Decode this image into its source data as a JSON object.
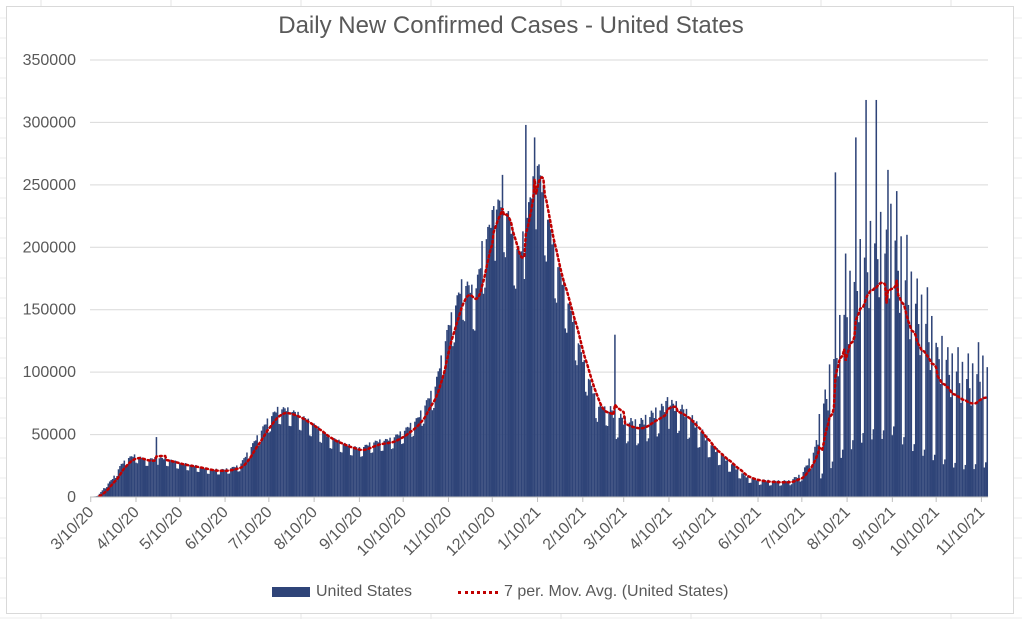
{
  "chart_data": {
    "type": "bar",
    "title": "Daily New Confirmed Cases - United States",
    "xlabel": "",
    "ylabel": "",
    "ylim": [
      0,
      350000
    ],
    "y_ticks": [
      "0",
      "50000",
      "100000",
      "150000",
      "200000",
      "250000",
      "300000",
      "350000"
    ],
    "x_start": "3/10/20",
    "x_end": "11/14/21",
    "x_ticks": [
      "3/10/20",
      "4/10/20",
      "5/10/20",
      "6/10/20",
      "7/10/20",
      "8/10/20",
      "9/10/20",
      "10/10/20",
      "11/10/20",
      "12/10/20",
      "1/10/21",
      "2/10/21",
      "3/10/21",
      "4/10/21",
      "5/10/21",
      "6/10/21",
      "7/10/21",
      "8/10/21",
      "9/10/21",
      "10/10/21",
      "11/10/21"
    ],
    "grid": true,
    "legend_position": "bottom",
    "colors": {
      "bars": "#2f4478",
      "moving_average": "#c00000",
      "grid": "#d9d9d9",
      "text": "#595959"
    },
    "series": [
      {
        "name": "United States",
        "type": "bar",
        "resolution": "daily",
        "anchor_points": [
          [
            "3/10/20",
            0
          ],
          [
            "3/15/20",
            1000
          ],
          [
            "3/20/20",
            8000
          ],
          [
            "3/25/20",
            14000
          ],
          [
            "3/31/20",
            25000
          ],
          [
            "4/5/20",
            30000
          ],
          [
            "4/10/20",
            32000
          ],
          [
            "4/15/20",
            29000
          ],
          [
            "4/20/20",
            29000
          ],
          [
            "4/25/20",
            30000
          ],
          [
            "5/1/20",
            29000
          ],
          [
            "5/10/20",
            26000
          ],
          [
            "5/20/20",
            24000
          ],
          [
            "6/1/20",
            21000
          ],
          [
            "6/10/20",
            21000
          ],
          [
            "6/20/20",
            24000
          ],
          [
            "6/25/20",
            33000
          ],
          [
            "7/1/20",
            44000
          ],
          [
            "7/10/20",
            60000
          ],
          [
            "7/17/20",
            68000
          ],
          [
            "7/25/20",
            66000
          ],
          [
            "8/1/20",
            62000
          ],
          [
            "8/10/20",
            55000
          ],
          [
            "8/20/20",
            46000
          ],
          [
            "9/1/20",
            40000
          ],
          [
            "9/10/20",
            37000
          ],
          [
            "9/20/20",
            42000
          ],
          [
            "10/1/20",
            44000
          ],
          [
            "10/10/20",
            50000
          ],
          [
            "10/20/20",
            60000
          ],
          [
            "11/1/20",
            85000
          ],
          [
            "11/10/20",
            130000
          ],
          [
            "11/20/20",
            165000
          ],
          [
            "11/28/20",
            155000
          ],
          [
            "12/5/20",
            195000
          ],
          [
            "12/12/20",
            220000
          ],
          [
            "12/18/20",
            228000
          ],
          [
            "12/24/20",
            200000
          ],
          [
            "12/29/20",
            185000
          ],
          [
            "1/3/21",
            215000
          ],
          [
            "1/10/21",
            255000
          ],
          [
            "1/15/21",
            225000
          ],
          [
            "1/22/21",
            185000
          ],
          [
            "2/1/21",
            145000
          ],
          [
            "2/10/21",
            105000
          ],
          [
            "2/20/21",
            70000
          ],
          [
            "3/1/21",
            65000
          ],
          [
            "3/10/21",
            58000
          ],
          [
            "3/20/21",
            55000
          ],
          [
            "4/1/21",
            64000
          ],
          [
            "4/10/21",
            70000
          ],
          [
            "4/17/21",
            68000
          ],
          [
            "4/25/21",
            60000
          ],
          [
            "5/10/21",
            38000
          ],
          [
            "5/20/21",
            28000
          ],
          [
            "6/1/21",
            16000
          ],
          [
            "6/10/21",
            13000
          ],
          [
            "6/20/21",
            12000
          ],
          [
            "7/1/21",
            12000
          ],
          [
            "7/10/21",
            17000
          ],
          [
            "7/20/21",
            38000
          ],
          [
            "8/1/21",
            85000
          ],
          [
            "8/10/21",
            120000
          ],
          [
            "8/20/21",
            145000
          ],
          [
            "9/1/21",
            160000
          ],
          [
            "9/5/21",
            150000
          ],
          [
            "9/10/21",
            165000
          ],
          [
            "9/20/21",
            130000
          ],
          [
            "10/1/21",
            110000
          ],
          [
            "10/10/21",
            95000
          ],
          [
            "10/20/21",
            80000
          ],
          [
            "11/1/21",
            72000
          ],
          [
            "11/14/21",
            80000
          ]
        ],
        "spikes": [
          [
            "4/24/20",
            48000
          ],
          [
            "12/3/20",
            205000
          ],
          [
            "12/11/20",
            233000
          ],
          [
            "12/17/20",
            258000
          ],
          [
            "1/2/21",
            298000
          ],
          [
            "1/8/21",
            288000
          ],
          [
            "3/4/21",
            130000
          ],
          [
            "4/9/21",
            80000
          ],
          [
            "8/2/21",
            260000
          ],
          [
            "8/9/21",
            195000
          ],
          [
            "8/16/21",
            288000
          ],
          [
            "8/23/21",
            318000
          ],
          [
            "8/30/21",
            318000
          ],
          [
            "9/7/21",
            262000
          ],
          [
            "9/13/21",
            245000
          ],
          [
            "9/20/21",
            210000
          ],
          [
            "9/27/21",
            175000
          ],
          [
            "10/4/21",
            168000
          ],
          [
            "10/11/21",
            120000
          ],
          [
            "10/18/21",
            120000
          ],
          [
            "10/25/21",
            120000
          ],
          [
            "11/1/21",
            115000
          ],
          [
            "11/8/21",
            124000
          ]
        ]
      },
      {
        "name": "7 per. Mov. Avg. (United States)",
        "type": "line",
        "style": "dotted"
      }
    ]
  }
}
